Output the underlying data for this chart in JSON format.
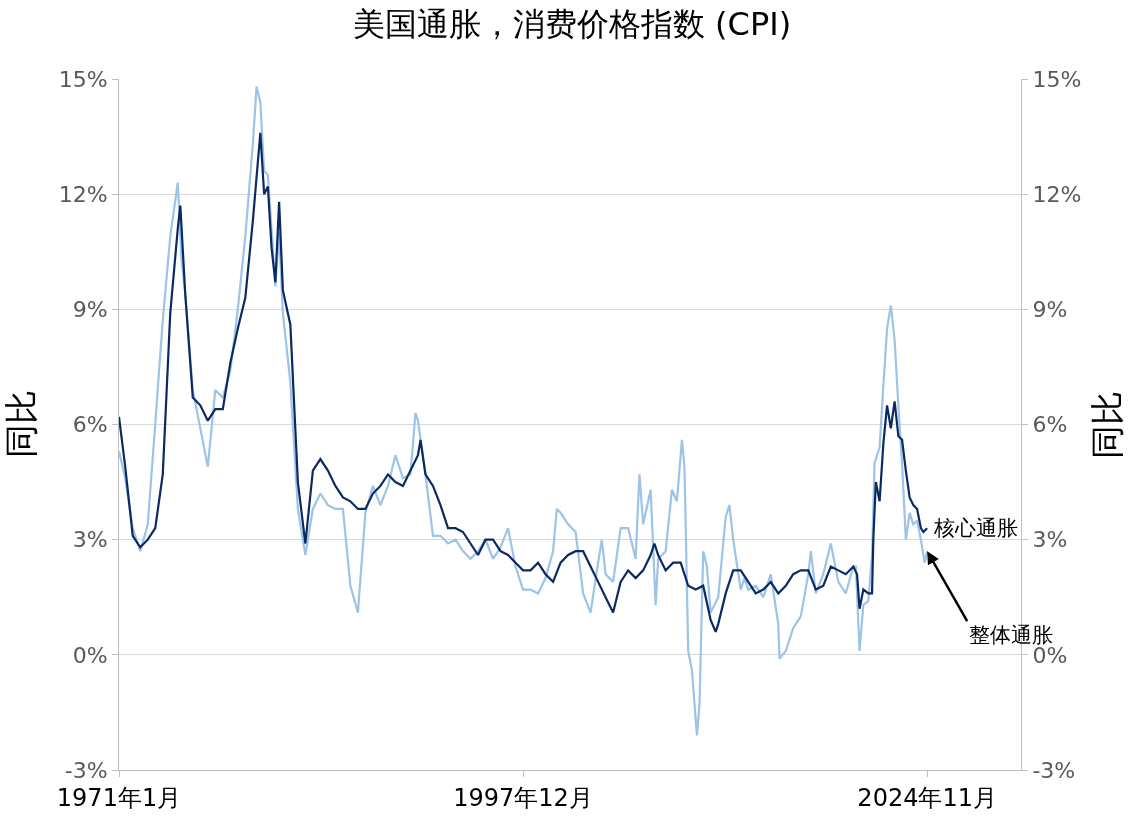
{
  "chart_data": {
    "type": "line",
    "title": "美国通胀，消费价格指数 (CPI)",
    "ylabel": "同比",
    "y2label": "同比",
    "xlim": [
      "1971-01",
      "2031-02"
    ],
    "xticks": [
      {
        "value": "1971-01",
        "label": "1971年1月"
      },
      {
        "value": "1997-12",
        "label": "1997年12月"
      },
      {
        "value": "2024-11",
        "label": "2024年11月"
      }
    ],
    "ylim": [
      -3,
      15
    ],
    "yticks": [
      {
        "value": -3,
        "label": "-3%"
      },
      {
        "value": 0,
        "label": "0%"
      },
      {
        "value": 3,
        "label": "3%"
      },
      {
        "value": 6,
        "label": "6%"
      },
      {
        "value": 9,
        "label": "9%"
      },
      {
        "value": 12,
        "label": "12%"
      },
      {
        "value": 15,
        "label": "15%"
      }
    ],
    "y2lim": [
      -3,
      15
    ],
    "y2ticks": [
      {
        "value": -3,
        "label": "-3%"
      },
      {
        "value": 0,
        "label": "0%"
      },
      {
        "value": 3,
        "label": "3%"
      },
      {
        "value": 6,
        "label": "6%"
      },
      {
        "value": 9,
        "label": "9%"
      },
      {
        "value": 12,
        "label": "12%"
      },
      {
        "value": 15,
        "label": "15%"
      }
    ],
    "grid": "y",
    "marker": "none",
    "line_style": "solid",
    "series": [
      {
        "color": "#9dc3e6",
        "x": [
          "1971-01",
          "1971-06",
          "1971-12",
          "1972-06",
          "1972-12",
          "1973-03",
          "1973-06",
          "1973-09",
          "1973-12",
          "1974-06",
          "1974-12",
          "1975-03",
          "1975-06",
          "1975-12",
          "1976-06",
          "1976-12",
          "1977-06",
          "1977-12",
          "1978-06",
          "1978-12",
          "1979-06",
          "1979-12",
          "1980-03",
          "1980-06",
          "1980-09",
          "1980-12",
          "1981-06",
          "1981-09",
          "1981-12",
          "1982-06",
          "1982-12",
          "1983-06",
          "1983-12",
          "1984-06",
          "1984-12",
          "1985-06",
          "1985-12",
          "1986-06",
          "1986-12",
          "1987-06",
          "1987-12",
          "1988-06",
          "1988-12",
          "1989-06",
          "1989-12",
          "1990-06",
          "1990-10",
          "1990-12",
          "1991-06",
          "1991-12",
          "1992-06",
          "1992-12",
          "1993-06",
          "1993-12",
          "1994-06",
          "1994-12",
          "1995-06",
          "1995-12",
          "1996-06",
          "1996-12",
          "1997-06",
          "1997-12",
          "1998-06",
          "1998-12",
          "1999-06",
          "1999-12",
          "2000-03",
          "2000-06",
          "2000-12",
          "2001-06",
          "2001-12",
          "2002-06",
          "2002-12",
          "2003-03",
          "2003-06",
          "2003-12",
          "2004-06",
          "2004-12",
          "2005-06",
          "2005-09",
          "2005-12",
          "2006-06",
          "2006-10",
          "2006-12",
          "2007-06",
          "2007-11",
          "2008-03",
          "2008-07",
          "2008-09",
          "2008-12",
          "2009-03",
          "2009-07",
          "2009-09",
          "2009-12",
          "2010-03",
          "2010-06",
          "2010-12",
          "2011-06",
          "2011-09",
          "2011-12",
          "2012-06",
          "2012-09",
          "2012-12",
          "2013-06",
          "2013-12",
          "2014-06",
          "2014-12",
          "2015-01",
          "2015-06",
          "2015-12",
          "2016-06",
          "2016-12",
          "2017-02",
          "2017-06",
          "2017-12",
          "2018-06",
          "2018-12",
          "2019-06",
          "2019-12",
          "2020-02",
          "2020-05",
          "2020-08",
          "2020-12",
          "2021-03",
          "2021-05",
          "2021-09",
          "2021-12",
          "2022-03",
          "2022-06",
          "2022-09",
          "2022-12",
          "2023-03",
          "2023-06",
          "2023-09",
          "2023-12",
          "2024-03",
          "2024-06",
          "2024-09",
          "2024-11"
        ],
        "values": [
          5.3,
          4.6,
          3.3,
          2.7,
          3.4,
          4.7,
          6.0,
          7.4,
          8.7,
          10.9,
          12.3,
          10.3,
          9.4,
          6.9,
          5.9,
          4.9,
          6.9,
          6.7,
          7.4,
          9.0,
          10.9,
          13.3,
          14.8,
          14.4,
          12.6,
          12.5,
          9.6,
          11.0,
          8.9,
          7.1,
          3.8,
          2.6,
          3.8,
          4.2,
          3.9,
          3.8,
          3.8,
          1.8,
          1.1,
          3.7,
          4.4,
          3.9,
          4.4,
          5.2,
          4.6,
          4.7,
          6.3,
          6.1,
          4.7,
          3.1,
          3.1,
          2.9,
          3.0,
          2.7,
          2.5,
          2.7,
          3.0,
          2.5,
          2.8,
          3.3,
          2.3,
          1.7,
          1.7,
          1.6,
          2.0,
          2.7,
          3.8,
          3.7,
          3.4,
          3.2,
          1.6,
          1.1,
          2.4,
          3.0,
          2.1,
          1.9,
          3.3,
          3.3,
          2.5,
          4.7,
          3.4,
          4.3,
          1.3,
          2.5,
          2.7,
          4.3,
          4.0,
          5.6,
          4.9,
          0.1,
          -0.4,
          -2.1,
          -1.3,
          2.7,
          2.3,
          1.1,
          1.5,
          3.6,
          3.9,
          3.0,
          1.7,
          2.0,
          1.7,
          1.8,
          1.5,
          2.1,
          0.8,
          -0.1,
          0.1,
          0.7,
          1.0,
          2.1,
          2.7,
          1.6,
          2.1,
          2.9,
          1.9,
          1.6,
          2.3,
          2.3,
          0.1,
          1.3,
          1.4,
          2.6,
          5.0,
          5.4,
          7.0,
          8.5,
          9.1,
          8.2,
          6.5,
          5.0,
          3.0,
          3.7,
          3.4,
          3.5,
          3.0,
          2.4,
          2.7
        ]
      },
      {
        "color": "#0b2a63",
        "x": [
          "1971-01",
          "1971-06",
          "1971-12",
          "1972-06",
          "1972-12",
          "1973-06",
          "1973-12",
          "1974-06",
          "1974-12",
          "1975-02",
          "1975-06",
          "1975-12",
          "1976-06",
          "1976-12",
          "1977-06",
          "1977-12",
          "1978-06",
          "1978-12",
          "1979-06",
          "1979-12",
          "1980-06",
          "1980-09",
          "1980-12",
          "1981-03",
          "1981-06",
          "1981-09",
          "1981-12",
          "1982-06",
          "1982-12",
          "1983-06",
          "1983-12",
          "1984-06",
          "1984-12",
          "1985-06",
          "1985-12",
          "1986-06",
          "1986-12",
          "1987-06",
          "1987-12",
          "1988-06",
          "1988-12",
          "1989-06",
          "1989-12",
          "1990-06",
          "1990-12",
          "1991-02",
          "1991-06",
          "1991-12",
          "1992-06",
          "1992-12",
          "1993-06",
          "1993-12",
          "1994-06",
          "1994-12",
          "1995-06",
          "1995-12",
          "1996-06",
          "1996-12",
          "1997-06",
          "1997-12",
          "1998-06",
          "1998-12",
          "1999-06",
          "1999-12",
          "2000-06",
          "2000-12",
          "2001-06",
          "2001-12",
          "2002-06",
          "2002-12",
          "2003-06",
          "2003-12",
          "2004-06",
          "2004-12",
          "2005-06",
          "2005-12",
          "2006-06",
          "2006-09",
          "2006-12",
          "2007-06",
          "2007-12",
          "2008-06",
          "2008-12",
          "2009-06",
          "2009-12",
          "2010-06",
          "2010-10",
          "2010-12",
          "2011-06",
          "2011-12",
          "2012-06",
          "2012-12",
          "2013-06",
          "2013-12",
          "2014-06",
          "2014-12",
          "2015-06",
          "2015-12",
          "2016-06",
          "2016-12",
          "2017-06",
          "2017-12",
          "2018-06",
          "2018-12",
          "2019-06",
          "2019-12",
          "2020-03",
          "2020-05",
          "2020-08",
          "2020-12",
          "2021-03",
          "2021-04",
          "2021-06",
          "2021-09",
          "2021-12",
          "2022-03",
          "2022-06",
          "2022-09",
          "2022-12",
          "2023-03",
          "2023-06",
          "2023-09",
          "2023-12",
          "2024-03",
          "2024-06",
          "2024-08",
          "2024-11"
        ],
        "values": [
          6.2,
          4.9,
          3.1,
          2.8,
          3.0,
          3.3,
          4.7,
          8.9,
          11.1,
          11.7,
          9.4,
          6.7,
          6.5,
          6.1,
          6.4,
          6.4,
          7.6,
          8.5,
          9.3,
          11.3,
          13.6,
          12.0,
          12.2,
          10.6,
          9.7,
          11.8,
          9.5,
          8.6,
          4.5,
          2.9,
          4.8,
          5.1,
          4.8,
          4.4,
          4.1,
          4.0,
          3.8,
          3.8,
          4.2,
          4.4,
          4.7,
          4.5,
          4.4,
          4.8,
          5.2,
          5.6,
          4.7,
          4.4,
          3.9,
          3.3,
          3.3,
          3.2,
          2.9,
          2.6,
          3.0,
          3.0,
          2.7,
          2.6,
          2.4,
          2.2,
          2.2,
          2.4,
          2.1,
          1.9,
          2.4,
          2.6,
          2.7,
          2.7,
          2.3,
          1.9,
          1.5,
          1.1,
          1.9,
          2.2,
          2.0,
          2.2,
          2.6,
          2.9,
          2.6,
          2.2,
          2.4,
          2.4,
          1.8,
          1.7,
          1.8,
          0.9,
          0.6,
          0.8,
          1.6,
          2.2,
          2.2,
          1.9,
          1.6,
          1.7,
          1.9,
          1.6,
          1.8,
          2.1,
          2.2,
          2.2,
          1.7,
          1.8,
          2.3,
          2.2,
          2.1,
          2.3,
          2.1,
          1.2,
          1.7,
          1.6,
          1.6,
          3.0,
          4.5,
          4.0,
          5.5,
          6.5,
          5.9,
          6.6,
          5.7,
          5.6,
          4.8,
          4.1,
          3.9,
          3.8,
          3.3,
          3.2,
          3.3
        ]
      }
    ],
    "annotations": [
      {
        "text": "核心通胀",
        "x": "2024-11",
        "y": 3.3
      },
      {
        "text": "整体通胀",
        "x": "2024-11",
        "y": 2.7
      }
    ]
  }
}
